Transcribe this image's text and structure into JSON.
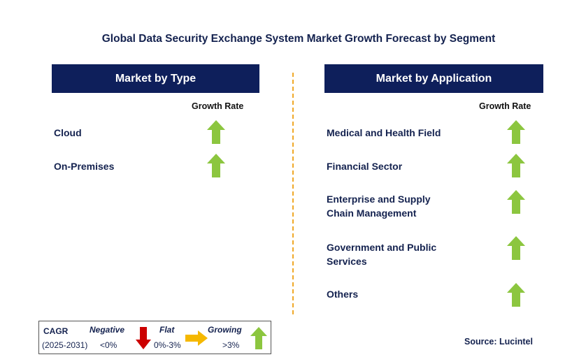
{
  "title": "Global Data Security Exchange System Market Growth Forecast by Segment",
  "left_panel": {
    "header": "Market by Type",
    "growth_rate_label": "Growth Rate",
    "items": [
      {
        "label": "Cloud",
        "trend": "growing"
      },
      {
        "label": "On-Premises",
        "trend": "growing"
      }
    ]
  },
  "right_panel": {
    "header": "Market by Application",
    "growth_rate_label": "Growth Rate",
    "items": [
      {
        "label": "Medical and Health Field",
        "trend": "growing"
      },
      {
        "label": "Financial Sector",
        "trend": "growing"
      },
      {
        "label": "Enterprise and Supply Chain Management",
        "trend": "growing"
      },
      {
        "label": "Government and Public Services",
        "trend": "growing"
      },
      {
        "label": "Others",
        "trend": "growing"
      }
    ]
  },
  "legend": {
    "cagr_label": "CAGR",
    "period": "(2025-2031)",
    "negative_label": "Negative",
    "negative_range": "<0%",
    "flat_label": "Flat",
    "flat_range": "0%-3%",
    "growing_label": "Growing",
    "growing_range": ">3%"
  },
  "source": "Source: Lucintel",
  "colors": {
    "header_bg": "#0e1f5b",
    "growing": "#8cc63f",
    "negative": "#cc0000",
    "flat": "#f5b800",
    "divider": "#f0a929"
  }
}
